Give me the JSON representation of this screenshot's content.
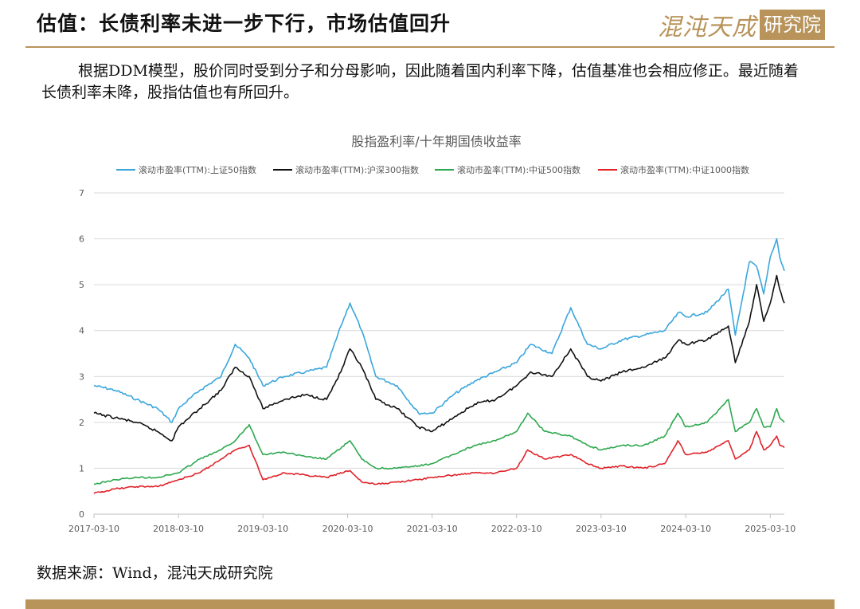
{
  "header": {
    "title": "估值：长债利率未进一步下行，市场估值回升",
    "logo_text": "混沌天成",
    "logo_box": "研究院"
  },
  "body": {
    "paragraph": "根据DDM模型，股价同时受到分子和分母影响，因此随着国内利率下降，估值基准也会相应修正。最近随着长债利率未降，股指估值也有所回升。"
  },
  "source": "数据来源：Wind，混沌天成研究院",
  "colors": {
    "accent": "#b8935a",
    "sse50": "#3aa6dc",
    "csi300": "#111111",
    "csi500": "#2ea84f",
    "csi1000": "#e0232a"
  },
  "chart_data": {
    "type": "line",
    "title": "股指盈利率/十年期国债收益率",
    "ylim": [
      0,
      7
    ],
    "yticks": [
      0,
      1,
      2,
      3,
      4,
      5,
      6,
      7
    ],
    "xlim": [
      "2017-03-10",
      "2025-05-10"
    ],
    "xticks": [
      "2017-03-10",
      "2018-03-10",
      "2019-03-10",
      "2020-03-10",
      "2021-03-10",
      "2022-03-10",
      "2023-03-10",
      "2024-03-10",
      "2025-03-10"
    ],
    "grid": "horizontal",
    "legend": "top",
    "series": [
      {
        "name": "滚动市盈率(TTM):上证50指数",
        "color": "#3aa6dc",
        "points": [
          [
            "2017-03-10",
            2.8
          ],
          [
            "2017-06-10",
            2.7
          ],
          [
            "2017-09-10",
            2.5
          ],
          [
            "2017-12-10",
            2.3
          ],
          [
            "2018-02-10",
            2.0
          ],
          [
            "2018-03-10",
            2.3
          ],
          [
            "2018-06-10",
            2.7
          ],
          [
            "2018-09-10",
            3.0
          ],
          [
            "2018-11-10",
            3.7
          ],
          [
            "2019-01-10",
            3.4
          ],
          [
            "2019-03-10",
            2.8
          ],
          [
            "2019-06-10",
            3.0
          ],
          [
            "2019-09-10",
            3.1
          ],
          [
            "2019-12-10",
            3.2
          ],
          [
            "2020-02-10",
            4.1
          ],
          [
            "2020-03-20",
            4.6
          ],
          [
            "2020-05-10",
            4.0
          ],
          [
            "2020-07-10",
            3.0
          ],
          [
            "2020-10-10",
            2.8
          ],
          [
            "2021-01-10",
            2.2
          ],
          [
            "2021-03-10",
            2.2
          ],
          [
            "2021-06-10",
            2.6
          ],
          [
            "2021-09-10",
            2.9
          ],
          [
            "2021-12-10",
            3.1
          ],
          [
            "2022-03-10",
            3.3
          ],
          [
            "2022-05-10",
            3.7
          ],
          [
            "2022-08-10",
            3.5
          ],
          [
            "2022-10-30",
            4.5
          ],
          [
            "2023-01-10",
            3.7
          ],
          [
            "2023-03-10",
            3.6
          ],
          [
            "2023-06-10",
            3.8
          ],
          [
            "2023-09-10",
            3.9
          ],
          [
            "2023-12-10",
            4.0
          ],
          [
            "2024-02-10",
            4.4
          ],
          [
            "2024-03-10",
            4.3
          ],
          [
            "2024-06-10",
            4.4
          ],
          [
            "2024-09-10",
            4.9
          ],
          [
            "2024-10-10",
            3.9
          ],
          [
            "2024-12-10",
            5.5
          ],
          [
            "2025-01-10",
            5.4
          ],
          [
            "2025-02-10",
            4.8
          ],
          [
            "2025-03-10",
            5.6
          ],
          [
            "2025-04-07",
            6.0
          ],
          [
            "2025-04-20",
            5.6
          ],
          [
            "2025-05-10",
            5.3
          ]
        ]
      },
      {
        "name": "滚动市盈率(TTM):沪深300指数",
        "color": "#111111",
        "points": [
          [
            "2017-03-10",
            2.2
          ],
          [
            "2017-06-10",
            2.1
          ],
          [
            "2017-09-10",
            2.0
          ],
          [
            "2017-12-10",
            1.8
          ],
          [
            "2018-02-10",
            1.6
          ],
          [
            "2018-03-10",
            1.9
          ],
          [
            "2018-06-10",
            2.3
          ],
          [
            "2018-09-10",
            2.7
          ],
          [
            "2018-11-10",
            3.2
          ],
          [
            "2019-01-10",
            3.0
          ],
          [
            "2019-03-10",
            2.3
          ],
          [
            "2019-06-10",
            2.5
          ],
          [
            "2019-09-10",
            2.6
          ],
          [
            "2019-12-10",
            2.5
          ],
          [
            "2020-02-10",
            3.1
          ],
          [
            "2020-03-20",
            3.6
          ],
          [
            "2020-05-10",
            3.2
          ],
          [
            "2020-07-10",
            2.5
          ],
          [
            "2020-10-10",
            2.3
          ],
          [
            "2021-01-10",
            1.9
          ],
          [
            "2021-03-10",
            1.8
          ],
          [
            "2021-06-10",
            2.1
          ],
          [
            "2021-09-10",
            2.4
          ],
          [
            "2021-12-10",
            2.5
          ],
          [
            "2022-03-10",
            2.8
          ],
          [
            "2022-05-10",
            3.1
          ],
          [
            "2022-08-10",
            3.0
          ],
          [
            "2022-10-30",
            3.6
          ],
          [
            "2023-01-10",
            3.0
          ],
          [
            "2023-03-10",
            2.9
          ],
          [
            "2023-06-10",
            3.1
          ],
          [
            "2023-09-10",
            3.2
          ],
          [
            "2023-12-10",
            3.4
          ],
          [
            "2024-02-10",
            3.8
          ],
          [
            "2024-03-10",
            3.7
          ],
          [
            "2024-06-10",
            3.8
          ],
          [
            "2024-09-10",
            4.1
          ],
          [
            "2024-10-10",
            3.3
          ],
          [
            "2024-12-10",
            4.2
          ],
          [
            "2025-01-10",
            5.0
          ],
          [
            "2025-02-10",
            4.2
          ],
          [
            "2025-03-10",
            4.6
          ],
          [
            "2025-04-07",
            5.2
          ],
          [
            "2025-04-20",
            4.9
          ],
          [
            "2025-05-10",
            4.6
          ]
        ]
      },
      {
        "name": "滚动市盈率(TTM):中证500指数",
        "color": "#2ea84f",
        "points": [
          [
            "2017-03-10",
            0.65
          ],
          [
            "2017-06-10",
            0.75
          ],
          [
            "2017-09-10",
            0.8
          ],
          [
            "2017-12-10",
            0.8
          ],
          [
            "2018-03-10",
            0.9
          ],
          [
            "2018-06-10",
            1.2
          ],
          [
            "2018-09-10",
            1.4
          ],
          [
            "2018-11-10",
            1.6
          ],
          [
            "2019-01-10",
            1.95
          ],
          [
            "2019-03-10",
            1.3
          ],
          [
            "2019-06-10",
            1.35
          ],
          [
            "2019-09-10",
            1.25
          ],
          [
            "2019-12-10",
            1.2
          ],
          [
            "2020-03-20",
            1.6
          ],
          [
            "2020-05-10",
            1.2
          ],
          [
            "2020-07-10",
            1.0
          ],
          [
            "2020-10-10",
            1.0
          ],
          [
            "2021-01-10",
            1.05
          ],
          [
            "2021-03-10",
            1.1
          ],
          [
            "2021-06-10",
            1.3
          ],
          [
            "2021-09-10",
            1.5
          ],
          [
            "2021-12-10",
            1.6
          ],
          [
            "2022-03-10",
            1.8
          ],
          [
            "2022-04-27",
            2.2
          ],
          [
            "2022-07-10",
            1.8
          ],
          [
            "2022-10-30",
            1.7
          ],
          [
            "2023-01-10",
            1.5
          ],
          [
            "2023-03-10",
            1.4
          ],
          [
            "2023-06-10",
            1.5
          ],
          [
            "2023-09-10",
            1.5
          ],
          [
            "2023-12-10",
            1.7
          ],
          [
            "2024-02-05",
            2.2
          ],
          [
            "2024-03-10",
            1.9
          ],
          [
            "2024-06-10",
            2.0
          ],
          [
            "2024-09-10",
            2.5
          ],
          [
            "2024-10-10",
            1.8
          ],
          [
            "2024-12-10",
            2.0
          ],
          [
            "2025-01-10",
            2.3
          ],
          [
            "2025-02-10",
            1.9
          ],
          [
            "2025-03-10",
            1.9
          ],
          [
            "2025-04-07",
            2.3
          ],
          [
            "2025-04-20",
            2.1
          ],
          [
            "2025-05-10",
            2.0
          ]
        ]
      },
      {
        "name": "滚动市盈率(TTM):中证1000指数",
        "color": "#e0232a",
        "points": [
          [
            "2017-03-10",
            0.45
          ],
          [
            "2017-06-10",
            0.55
          ],
          [
            "2017-09-10",
            0.6
          ],
          [
            "2017-12-10",
            0.6
          ],
          [
            "2018-03-10",
            0.75
          ],
          [
            "2018-06-10",
            0.9
          ],
          [
            "2018-09-10",
            1.2
          ],
          [
            "2018-11-10",
            1.4
          ],
          [
            "2019-01-10",
            1.5
          ],
          [
            "2019-03-10",
            0.75
          ],
          [
            "2019-06-10",
            0.9
          ],
          [
            "2019-09-10",
            0.85
          ],
          [
            "2019-12-10",
            0.8
          ],
          [
            "2020-03-20",
            0.95
          ],
          [
            "2020-05-10",
            0.7
          ],
          [
            "2020-07-10",
            0.65
          ],
          [
            "2020-10-10",
            0.7
          ],
          [
            "2021-01-10",
            0.75
          ],
          [
            "2021-03-10",
            0.8
          ],
          [
            "2021-06-10",
            0.85
          ],
          [
            "2021-09-10",
            0.9
          ],
          [
            "2021-12-10",
            0.9
          ],
          [
            "2022-03-10",
            1.0
          ],
          [
            "2022-04-27",
            1.4
          ],
          [
            "2022-07-10",
            1.2
          ],
          [
            "2022-10-30",
            1.3
          ],
          [
            "2023-01-10",
            1.1
          ],
          [
            "2023-03-10",
            1.0
          ],
          [
            "2023-06-10",
            1.05
          ],
          [
            "2023-09-10",
            1.0
          ],
          [
            "2023-12-10",
            1.1
          ],
          [
            "2024-02-05",
            1.6
          ],
          [
            "2024-03-10",
            1.3
          ],
          [
            "2024-06-10",
            1.35
          ],
          [
            "2024-09-10",
            1.6
          ],
          [
            "2024-10-10",
            1.2
          ],
          [
            "2024-12-10",
            1.4
          ],
          [
            "2025-01-10",
            1.8
          ],
          [
            "2025-02-10",
            1.4
          ],
          [
            "2025-03-10",
            1.5
          ],
          [
            "2025-04-07",
            1.7
          ],
          [
            "2025-04-20",
            1.5
          ],
          [
            "2025-05-10",
            1.45
          ]
        ]
      }
    ]
  }
}
